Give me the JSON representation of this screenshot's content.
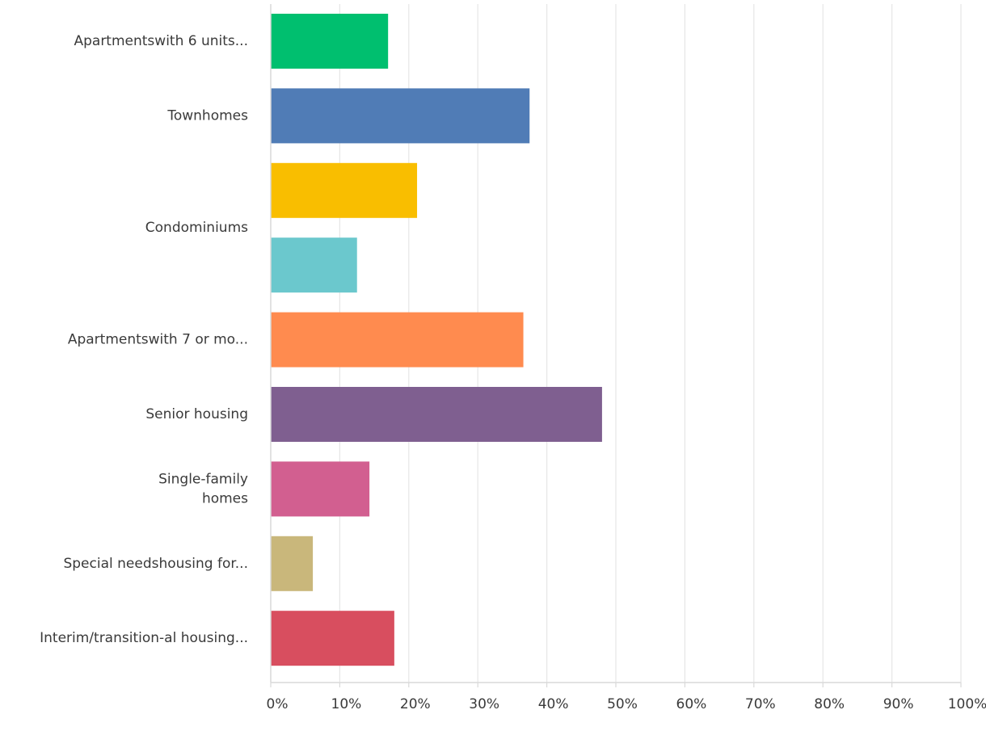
{
  "chart_data": {
    "type": "bar",
    "orientation": "horizontal",
    "title": "",
    "xlabel": "",
    "ylabel": "",
    "xlim": [
      0,
      100
    ],
    "x_ticks": [
      "0%",
      "10%",
      "20%",
      "30%",
      "40%",
      "50%",
      "60%",
      "70%",
      "80%",
      "90%",
      "100%"
    ],
    "grid": true,
    "legend": "none",
    "categories": [
      "Apartmentswith 6 units...",
      "Townhomes",
      "",
      "Condominiums",
      "Apartmentswith 7 or mo...",
      "Senior housing",
      "Single-family homes",
      "Special needshousing for...",
      "Interim/transition-al housing..."
    ],
    "values": [
      17,
      37.5,
      21.2,
      12.5,
      36.6,
      48,
      14.3,
      6.1,
      17.9
    ],
    "colors": [
      "#00bf6f",
      "#507cb6",
      "#f9be00",
      "#6bc8cd",
      "#ff8b4f",
      "#7f5f90",
      "#d25f90",
      "#c9b77b",
      "#d84e5f"
    ]
  }
}
